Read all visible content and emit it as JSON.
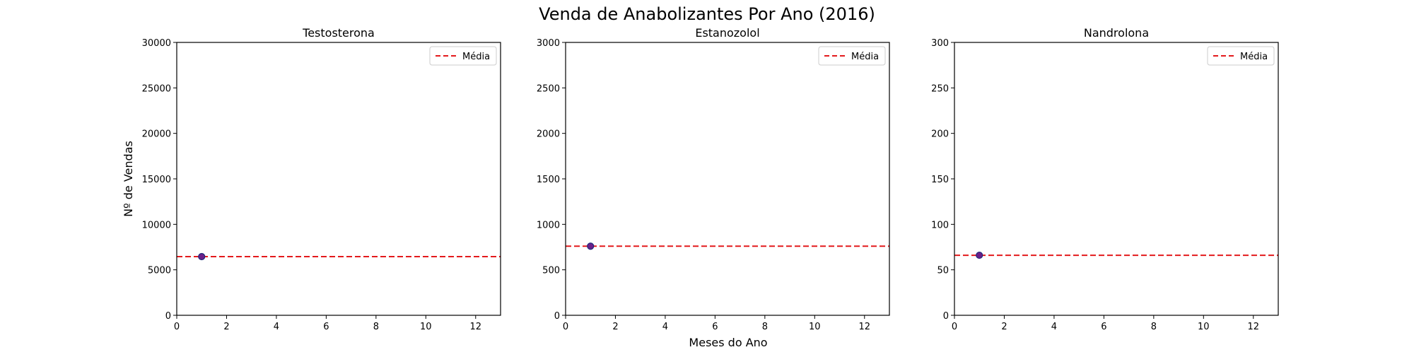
{
  "figure": {
    "title": "Venda de Anabolizantes Por Ano (2016)",
    "xlabel": "Meses do Ano",
    "ylabel": "Nº de Vendas"
  },
  "chart_data": [
    {
      "type": "scatter",
      "title": "Testosterona",
      "x": [
        1
      ],
      "y": [
        6450
      ],
      "mean": 6450,
      "mean_label": "Média",
      "xlim": [
        0,
        13
      ],
      "ylim": [
        0,
        30000
      ],
      "xticks": [
        0,
        2,
        4,
        6,
        8,
        10,
        12
      ],
      "yticks": [
        0,
        5000,
        10000,
        15000,
        20000,
        25000,
        30000
      ],
      "legend": "top-right"
    },
    {
      "type": "scatter",
      "title": "Estanozolol",
      "x": [
        1
      ],
      "y": [
        760
      ],
      "mean": 760,
      "mean_label": "Média",
      "xlim": [
        0,
        13
      ],
      "ylim": [
        0,
        3000
      ],
      "xticks": [
        0,
        2,
        4,
        6,
        8,
        10,
        12
      ],
      "yticks": [
        0,
        500,
        1000,
        1500,
        2000,
        2500,
        3000
      ],
      "legend": "top-right"
    },
    {
      "type": "scatter",
      "title": "Nandrolona",
      "x": [
        1
      ],
      "y": [
        66
      ],
      "mean": 66,
      "mean_label": "Média",
      "xlim": [
        0,
        13
      ],
      "ylim": [
        0,
        300
      ],
      "xticks": [
        0,
        2,
        4,
        6,
        8,
        10,
        12
      ],
      "yticks": [
        0,
        50,
        100,
        150,
        200,
        250,
        300
      ],
      "legend": "top-right"
    }
  ],
  "colors": {
    "marker_fill": "#6a1f8a",
    "marker_edge": "#1f2a7a",
    "mean_line": "#e31a1c",
    "axes": "#000000"
  }
}
